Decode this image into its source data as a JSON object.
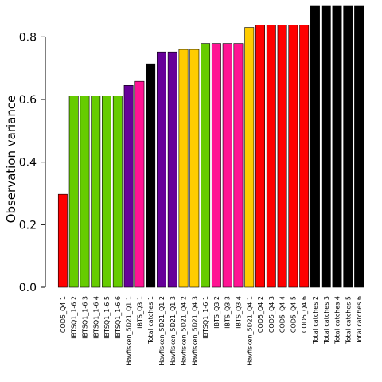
{
  "chart_data": {
    "type": "bar",
    "title": "",
    "xlabel": "",
    "ylabel": "Observation variance",
    "ylim": [
      0,
      0.9
    ],
    "yticks": [
      0.0,
      0.2,
      0.4,
      0.6,
      0.8
    ],
    "ytick_labels": [
      "0.0",
      "0.2",
      "0.4",
      "0.6",
      "0.8"
    ],
    "grid": false,
    "legend": "none",
    "categories": [
      "COD5_Q4 1",
      "IBTSQ1_1-6 2",
      "IBTSQ1_1-6 3",
      "IBTSQ1_1-6 4",
      "IBTSQ1_1-6 5",
      "IBTSQ1_1-6 6",
      "Havfisken_5D21_Q1 1",
      "IBTS_Q3 1",
      "Total catches 1",
      "Havfisken_5D21_Q1 2",
      "Havfisken_5D21_Q1 3",
      "Havfisken_5D21_Q4 2",
      "Havfisken_5D21_Q4 3",
      "IBTSQ1_1-6 1",
      "IBTS_Q3 2",
      "IBTS_Q3 3",
      "IBTS_Q3 4",
      "Havfisken_5D21_Q4 1",
      "COD5_Q4 2",
      "COD5_Q4 3",
      "COD5_Q4 4",
      "COD5_Q4 5",
      "COD5_Q4 6",
      "Total catches 2",
      "Total catches 3",
      "Total catches 4",
      "Total catches 5",
      "Total catches 6"
    ],
    "values": [
      0.297,
      0.611,
      0.611,
      0.611,
      0.611,
      0.611,
      0.645,
      0.658,
      0.714,
      0.752,
      0.752,
      0.76,
      0.76,
      0.779,
      0.779,
      0.779,
      0.779,
      0.83,
      0.838,
      0.838,
      0.838,
      0.838,
      0.838,
      0.9,
      0.9,
      0.9,
      0.9,
      0.9
    ],
    "colors": [
      "#ff0000",
      "#66cc00",
      "#66cc00",
      "#66cc00",
      "#66cc00",
      "#66cc00",
      "#660099",
      "#ff1493",
      "#000000",
      "#660099",
      "#660099",
      "#ffcc00",
      "#ffcc00",
      "#66cc00",
      "#ff1493",
      "#ff1493",
      "#ff1493",
      "#ffcc00",
      "#ff0000",
      "#ff0000",
      "#ff0000",
      "#ff0000",
      "#ff0000",
      "#000000",
      "#000000",
      "#000000",
      "#000000",
      "#000000"
    ]
  }
}
